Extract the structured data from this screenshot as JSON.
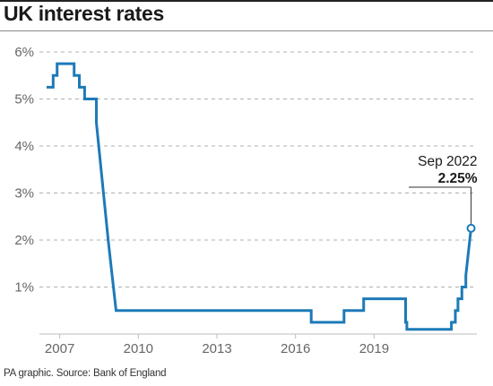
{
  "title": "UK interest rates",
  "footer": "PA graphic. Source: Bank of England",
  "colors": {
    "line": "#1d7ab8",
    "grid": "#b0b0b0",
    "text": "#1a1a1a"
  },
  "chart_data": {
    "type": "line",
    "title": "UK interest rates",
    "xlabel": "",
    "ylabel": "",
    "xlim": [
      2006.5,
      2022.75
    ],
    "ylim": [
      0,
      6
    ],
    "grid": true,
    "x_ticks": [
      {
        "value": 2007,
        "label": "2007"
      },
      {
        "value": 2010,
        "label": "2010"
      },
      {
        "value": 2013,
        "label": "2013"
      },
      {
        "value": 2016,
        "label": "2016"
      },
      {
        "value": 2019,
        "label": "2019"
      }
    ],
    "y_ticks": [
      {
        "value": 1,
        "label": "1%"
      },
      {
        "value": 2,
        "label": "2%"
      },
      {
        "value": 3,
        "label": "3%"
      },
      {
        "value": 4,
        "label": "4%"
      },
      {
        "value": 5,
        "label": "5%"
      },
      {
        "value": 6,
        "label": "6%"
      }
    ],
    "series": [
      {
        "x": [
          2006.5,
          2006.75,
          2006.75,
          2006.9,
          2006.9,
          2007.05,
          2007.05,
          2007.55,
          2007.55,
          2007.75,
          2007.75,
          2007.95,
          2007.95,
          2008.4,
          2008.4,
          2008.85,
          2008.95,
          2009.15,
          2016.6,
          2016.6,
          2017.85,
          2017.85,
          2018.6,
          2018.6,
          2020.2,
          2020.2,
          2020.25,
          2020.25,
          2021.95,
          2021.95,
          2022.1,
          2022.1,
          2022.2,
          2022.2,
          2022.35,
          2022.35,
          2022.5,
          2022.5,
          2022.7
        ],
        "y": [
          5.25,
          5.25,
          5.5,
          5.5,
          5.75,
          5.75,
          5.75,
          5.75,
          5.5,
          5.5,
          5.25,
          5.25,
          5.0,
          5.0,
          4.5,
          2.0,
          1.5,
          0.5,
          0.5,
          0.25,
          0.25,
          0.5,
          0.5,
          0.75,
          0.75,
          0.25,
          0.25,
          0.1,
          0.1,
          0.25,
          0.25,
          0.5,
          0.5,
          0.75,
          0.75,
          1.0,
          1.0,
          1.25,
          2.25
        ]
      }
    ],
    "annotation": {
      "x": 2022.7,
      "y": 2.25,
      "label": "Sep 2022",
      "value_label": "2.25%"
    }
  }
}
